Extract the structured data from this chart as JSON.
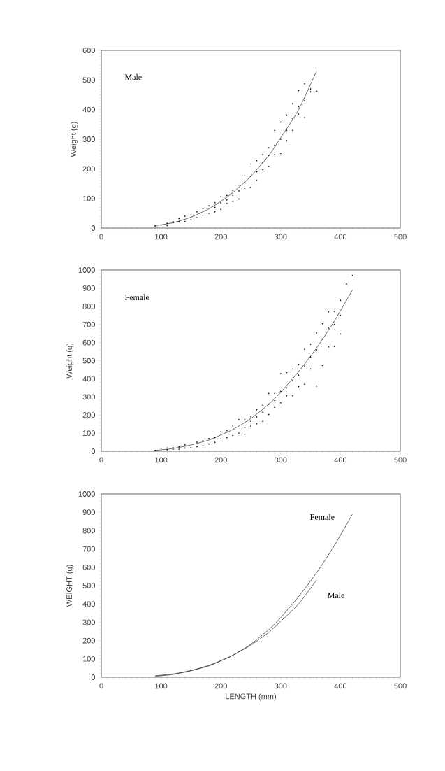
{
  "chart_data": [
    {
      "type": "scatter",
      "ylabel": "Weight (g)",
      "annotations": [
        "Male"
      ],
      "xlim": [
        0,
        500
      ],
      "xticks": [
        0,
        100,
        200,
        300,
        400,
        500
      ],
      "ylim": [
        0,
        600
      ],
      "yticks": [
        0,
        100,
        200,
        300,
        400,
        500,
        600
      ],
      "series": [
        {
          "marker": "circle",
          "color": "#000000",
          "x": [
            90,
            100,
            110,
            110,
            120,
            120,
            130,
            130,
            140,
            140,
            150,
            150,
            160,
            160,
            170,
            170,
            180,
            180,
            190,
            190,
            190,
            200,
            200,
            200,
            210,
            210,
            210,
            220,
            220,
            220,
            230,
            230,
            230,
            240,
            240,
            240,
            250,
            250,
            250,
            260,
            260,
            260,
            270,
            270,
            270,
            280,
            280,
            280,
            290,
            290,
            290,
            300,
            300,
            300,
            310,
            310,
            310,
            320,
            320,
            320,
            330,
            330,
            330,
            340,
            340,
            340,
            350,
            350,
            360
          ],
          "values": [
            7,
            10,
            8,
            16,
            18,
            22,
            22,
            32,
            22,
            40,
            28,
            45,
            35,
            55,
            43,
            65,
            50,
            75,
            55,
            70,
            86,
            63,
            85,
            106,
            83,
            95,
            110,
            90,
            110,
            126,
            98,
            125,
            145,
            134,
            155,
            177,
            138,
            175,
            216,
            161,
            190,
            228,
            197,
            220,
            248,
            208,
            245,
            271,
            248,
            280,
            330,
            252,
            300,
            358,
            295,
            330,
            381,
            330,
            370,
            420,
            385,
            410,
            464,
            373,
            430,
            487,
            460,
            470,
            462
          ]
        },
        {
          "type": "line",
          "color": "#000000",
          "x": [
            90,
            120,
            150,
            180,
            200,
            220,
            250,
            280,
            300,
            330,
            360
          ],
          "values": [
            8,
            18,
            37,
            65,
            90,
            120,
            175,
            245,
            305,
            400,
            530
          ]
        }
      ]
    },
    {
      "type": "scatter",
      "ylabel": "Weight (g)",
      "annotations": [
        "Female"
      ],
      "xlim": [
        0,
        500
      ],
      "xticks": [
        0,
        100,
        200,
        300,
        400,
        500
      ],
      "ylim": [
        0,
        1000
      ],
      "yticks": [
        0,
        100,
        200,
        300,
        400,
        500,
        600,
        700,
        800,
        900,
        1000
      ],
      "series": [
        {
          "marker": "circle",
          "color": "#000000",
          "x": [
            90,
            100,
            100,
            110,
            110,
            120,
            120,
            130,
            130,
            140,
            140,
            150,
            150,
            160,
            160,
            170,
            170,
            180,
            180,
            190,
            190,
            200,
            200,
            210,
            210,
            220,
            220,
            230,
            230,
            240,
            240,
            240,
            250,
            250,
            250,
            260,
            260,
            260,
            270,
            270,
            270,
            280,
            280,
            280,
            290,
            290,
            290,
            300,
            300,
            300,
            310,
            310,
            310,
            320,
            320,
            320,
            330,
            330,
            330,
            340,
            340,
            340,
            350,
            350,
            350,
            360,
            360,
            360,
            370,
            370,
            370,
            380,
            380,
            380,
            390,
            390,
            390,
            400,
            400,
            400,
            410,
            420
          ],
          "values": [
            5,
            3,
            15,
            8,
            18,
            10,
            20,
            12,
            25,
            18,
            35,
            20,
            40,
            25,
            50,
            32,
            60,
            40,
            70,
            49,
            75,
            68,
            107,
            75,
            113,
            87,
            139,
            100,
            175,
            94,
            130,
            177,
            139,
            165,
            190,
            152,
            190,
            229,
            165,
            215,
            254,
            203,
            260,
            319,
            242,
            280,
            319,
            267,
            330,
            428,
            306,
            350,
            434,
            306,
            390,
            454,
            357,
            420,
            479,
            370,
            470,
            563,
            454,
            520,
            591,
            360,
            560,
            653,
            473,
            620,
            704,
            576,
            680,
            769,
            578,
            700,
            771,
            647,
            750,
            833,
            923,
            970
          ]
        },
        {
          "type": "line",
          "color": "#000000",
          "x": [
            90,
            120,
            150,
            180,
            200,
            220,
            250,
            280,
            300,
            330,
            360,
            390,
            420
          ],
          "values": [
            5,
            15,
            35,
            62,
            90,
            120,
            180,
            260,
            325,
            440,
            570,
            720,
            890
          ]
        }
      ]
    },
    {
      "type": "line",
      "xlabel": "LENGTH (mm)",
      "ylabel": "WEIGHT (g)",
      "xlim": [
        0,
        500
      ],
      "xticks": [
        0,
        100,
        200,
        300,
        400,
        500
      ],
      "ylim": [
        0,
        1000
      ],
      "yticks": [
        0,
        100,
        200,
        300,
        400,
        500,
        600,
        700,
        800,
        900,
        1000
      ],
      "series": [
        {
          "name": "Female",
          "color": "#000000",
          "x": [
            90,
            120,
            150,
            180,
            200,
            220,
            250,
            280,
            300,
            330,
            360,
            390,
            420
          ],
          "values": [
            5,
            15,
            35,
            62,
            90,
            120,
            180,
            260,
            325,
            440,
            570,
            720,
            890
          ]
        },
        {
          "name": "Male",
          "color": "#000000",
          "x": [
            90,
            120,
            150,
            180,
            200,
            220,
            250,
            280,
            300,
            330,
            360
          ],
          "values": [
            8,
            18,
            37,
            65,
            90,
            120,
            175,
            245,
            305,
            400,
            530
          ]
        }
      ]
    }
  ]
}
